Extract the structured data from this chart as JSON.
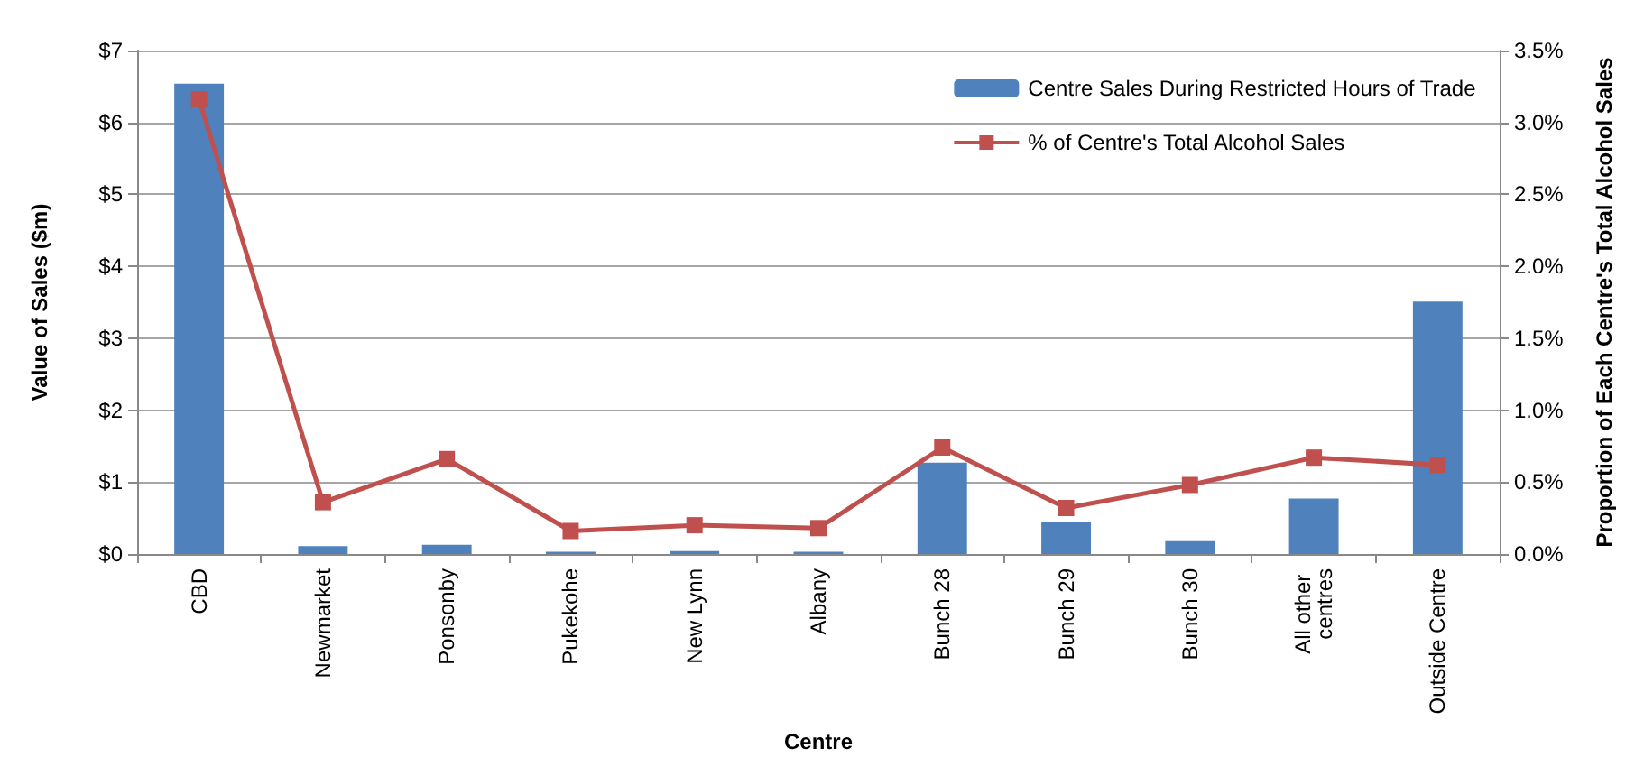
{
  "chart_data": {
    "type": "bar",
    "xlabel": "Centre",
    "ylabel": "Value of Sales ($m)",
    "y2label": "Proportion of Each Centre's Total Alcohol Sales",
    "categories": [
      "CBD",
      "Newmarket",
      "Ponsonby",
      "Pukekohe",
      "New Lynn",
      "Albany",
      "Bunch 28",
      "Bunch 29",
      "Bunch 30",
      "All other centres",
      "Outside Centre"
    ],
    "series": [
      {
        "name": "Centre Sales During Restricted Hours of Trade",
        "color": "#4f81bd",
        "values": [
          6.54,
          0.11,
          0.13,
          0.03,
          0.04,
          0.03,
          1.27,
          0.45,
          0.18,
          0.77,
          3.51
        ]
      },
      {
        "name": "% of Centre's Total Alcohol Sales",
        "type": "line",
        "axis": "y2",
        "color": "#c0504d",
        "marker": "square",
        "values": [
          3.16,
          0.36,
          0.66,
          0.16,
          0.2,
          0.18,
          0.74,
          0.32,
          0.48,
          0.67,
          0.62
        ]
      }
    ],
    "ylim": [
      0,
      7
    ],
    "yticks": [
      {
        "value": 0,
        "label": "$0"
      },
      {
        "value": 1,
        "label": "$1"
      },
      {
        "value": 2,
        "label": "$2"
      },
      {
        "value": 3,
        "label": "$3"
      },
      {
        "value": 4,
        "label": "$4"
      },
      {
        "value": 5,
        "label": "$5"
      },
      {
        "value": 6,
        "label": "$6"
      },
      {
        "value": 7,
        "label": "$7"
      }
    ],
    "y2lim": [
      0,
      3.5
    ],
    "y2ticks": [
      {
        "value": 0,
        "label": "0.0%"
      },
      {
        "value": 0.5,
        "label": "0.5%"
      },
      {
        "value": 1,
        "label": "1.0%"
      },
      {
        "value": 1.5,
        "label": "1.5%"
      },
      {
        "value": 2,
        "label": "2.0%"
      },
      {
        "value": 2.5,
        "label": "2.5%"
      },
      {
        "value": 3,
        "label": "3.0%"
      },
      {
        "value": 3.5,
        "label": "3.5%"
      }
    ],
    "grid": "y",
    "legend": "top right"
  }
}
